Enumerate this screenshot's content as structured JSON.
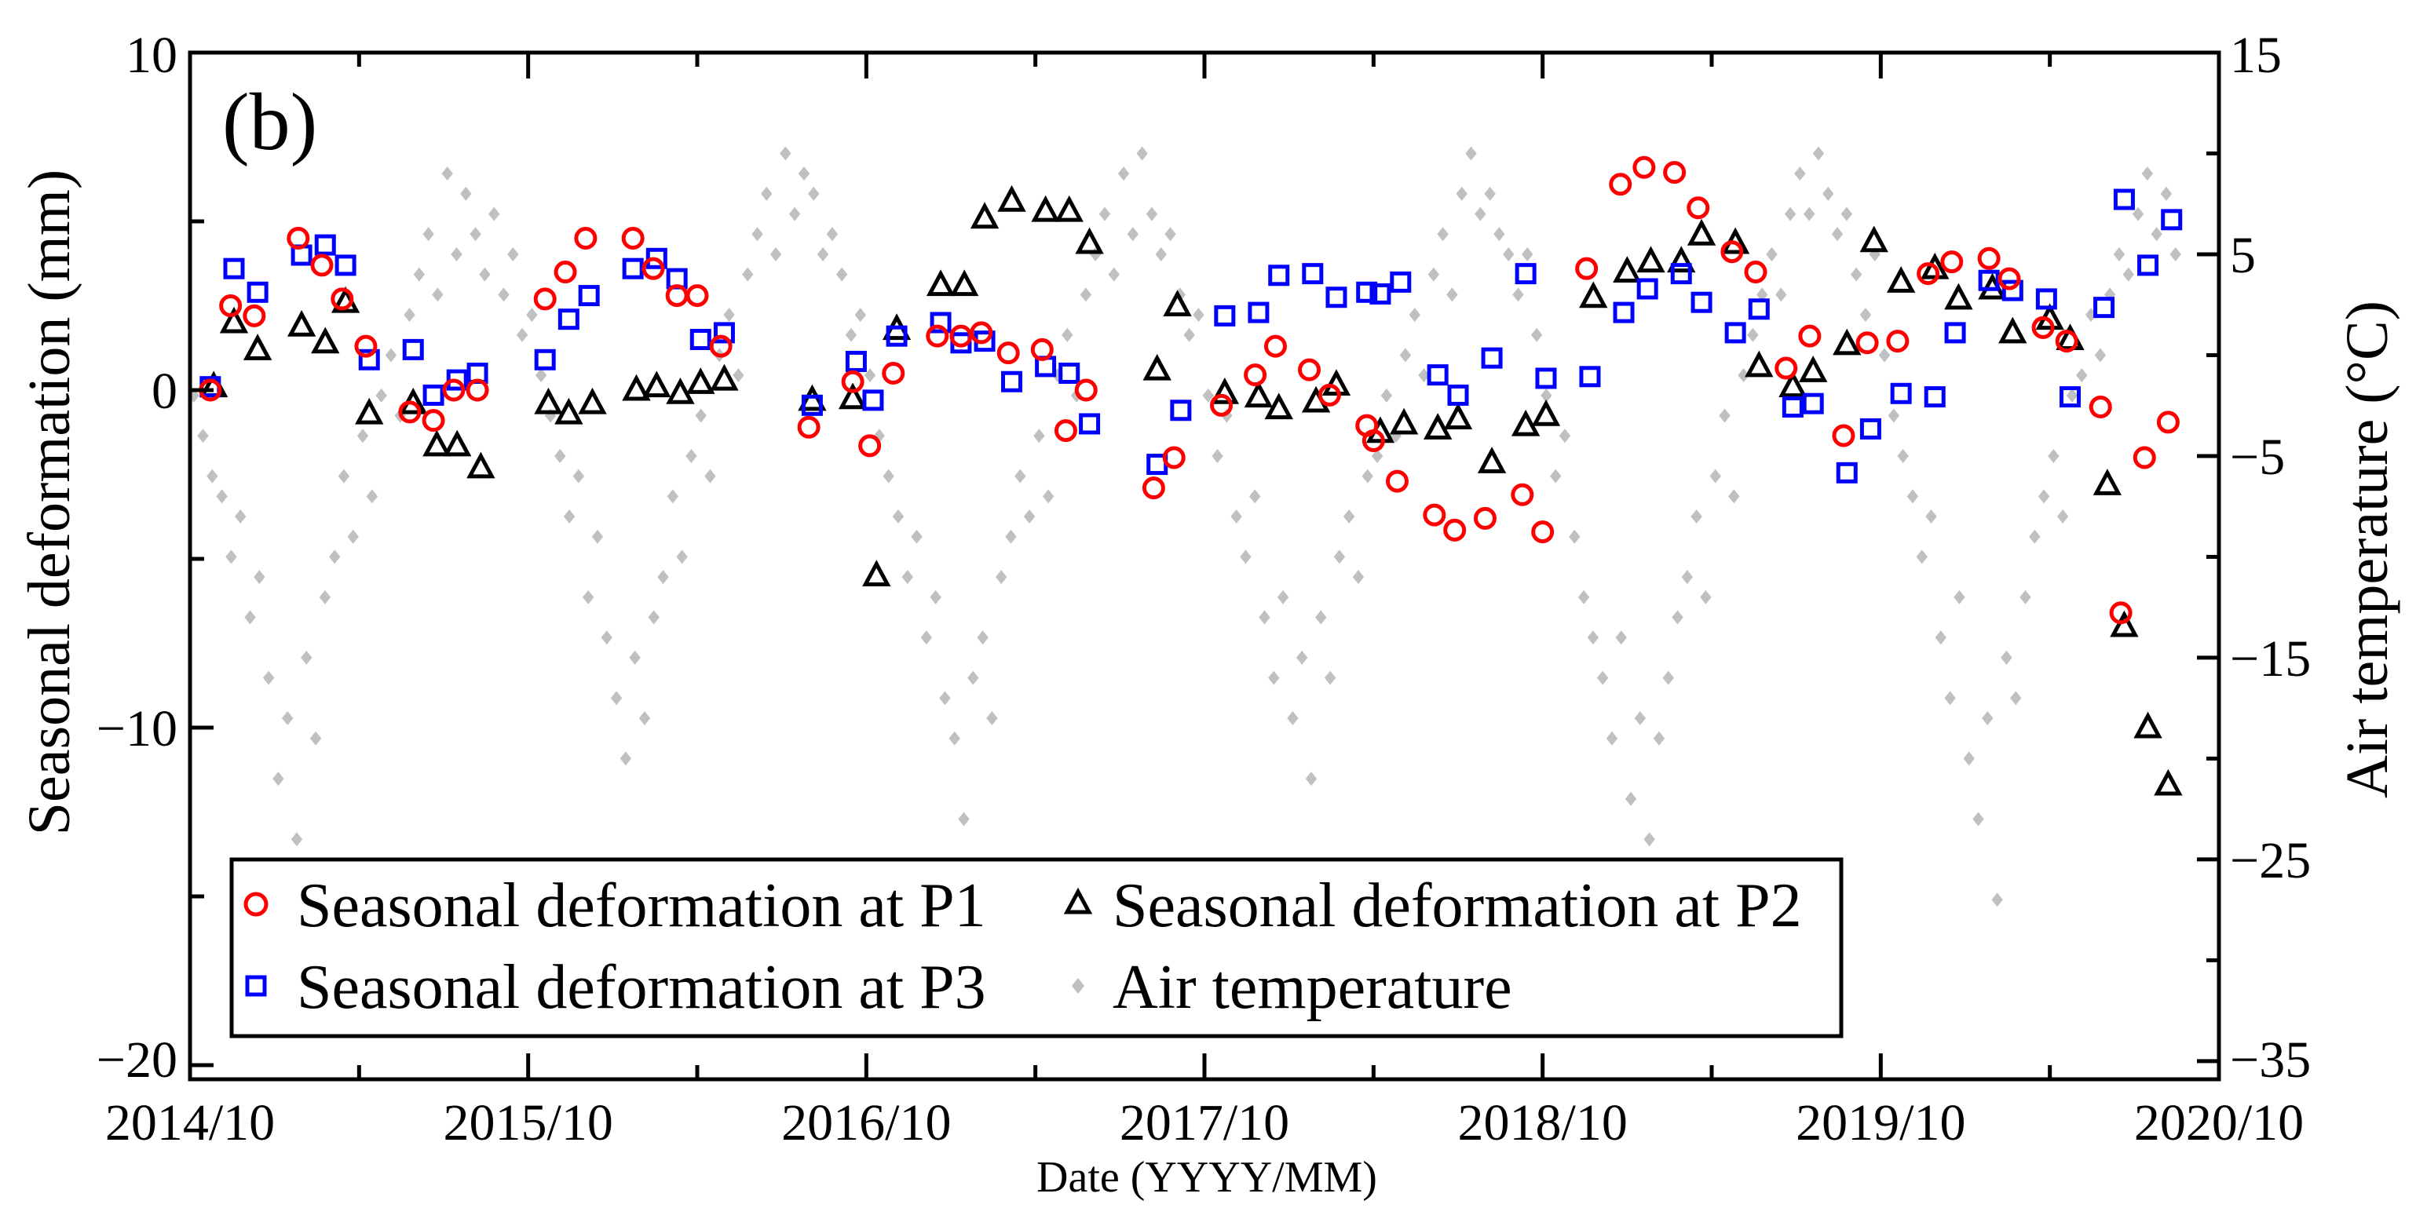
{
  "chart_data": {
    "type": "scatter",
    "panel_label": "(b)",
    "xlabel": "Date (YYYY/MM)",
    "ylabel": "Seasonal deformation (mm)",
    "y2label": "Air temperature (°C)",
    "xlim": [
      2014.75,
      2020.75
    ],
    "xticks": {
      "values": [
        2014.75,
        2015.75,
        2016.75,
        2017.75,
        2018.75,
        2019.75,
        2020.75
      ],
      "labels": [
        "2014/10",
        "2015/10",
        "2016/10",
        "2017/10",
        "2018/10",
        "2019/10",
        "2020/10"
      ]
    },
    "ylim": [
      -20.42,
      10
    ],
    "yticks": {
      "values": [
        10,
        0,
        -10,
        -20
      ],
      "labels": [
        "10",
        "0",
        "−10",
        "−20"
      ]
    },
    "y2lim": [
      -35.9,
      15
    ],
    "y2ticks": {
      "values": [
        15,
        5,
        -5,
        -15,
        -25,
        -35
      ],
      "labels": [
        "15",
        "5",
        "−5",
        "−15",
        "−25",
        "−35"
      ]
    },
    "grid": false,
    "legend_position": "bottom-left",
    "series": [
      {
        "name": "Seasonal deformation at P1",
        "color": "#ff0000",
        "marker": "circle",
        "axis": "left",
        "points": [
          [
            2014.81,
            0.0
          ],
          [
            2014.87,
            2.5
          ],
          [
            2014.94,
            2.2
          ],
          [
            2015.07,
            4.5
          ],
          [
            2015.14,
            3.7
          ],
          [
            2015.2,
            2.7
          ],
          [
            2015.27,
            1.3
          ],
          [
            2015.4,
            -0.65
          ],
          [
            2015.47,
            -0.9
          ],
          [
            2015.53,
            0.0
          ],
          [
            2015.6,
            0.0
          ],
          [
            2015.8,
            2.7
          ],
          [
            2015.86,
            3.5
          ],
          [
            2015.92,
            4.5
          ],
          [
            2016.06,
            4.5
          ],
          [
            2016.12,
            3.6
          ],
          [
            2016.19,
            2.8
          ],
          [
            2016.25,
            2.8
          ],
          [
            2016.32,
            1.3
          ],
          [
            2016.58,
            -1.1
          ],
          [
            2016.71,
            0.25
          ],
          [
            2016.76,
            -1.65
          ],
          [
            2016.83,
            0.5
          ],
          [
            2016.96,
            1.6
          ],
          [
            2017.03,
            1.6
          ],
          [
            2017.09,
            1.7
          ],
          [
            2017.17,
            1.1
          ],
          [
            2017.27,
            1.2
          ],
          [
            2017.34,
            -1.2
          ],
          [
            2017.4,
            0.0
          ],
          [
            2017.6,
            -2.9
          ],
          [
            2017.66,
            -2.0
          ],
          [
            2017.8,
            -0.45
          ],
          [
            2017.9,
            0.45
          ],
          [
            2017.96,
            1.3
          ],
          [
            2018.06,
            0.6
          ],
          [
            2018.12,
            -0.15
          ],
          [
            2018.23,
            -1.05
          ],
          [
            2018.25,
            -1.5
          ],
          [
            2018.32,
            -2.7
          ],
          [
            2018.43,
            -3.7
          ],
          [
            2018.49,
            -4.15
          ],
          [
            2018.58,
            -3.8
          ],
          [
            2018.69,
            -3.1
          ],
          [
            2018.75,
            -4.2
          ],
          [
            2018.88,
            3.6
          ],
          [
            2018.98,
            6.1
          ],
          [
            2019.05,
            6.6
          ],
          [
            2019.14,
            6.45
          ],
          [
            2019.21,
            5.4
          ],
          [
            2019.31,
            4.1
          ],
          [
            2019.38,
            3.5
          ],
          [
            2019.47,
            0.65
          ],
          [
            2019.54,
            1.6
          ],
          [
            2019.64,
            -1.35
          ],
          [
            2019.71,
            1.4
          ],
          [
            2019.8,
            1.45
          ],
          [
            2019.89,
            3.45
          ],
          [
            2019.96,
            3.8
          ],
          [
            2020.07,
            3.9
          ],
          [
            2020.13,
            3.3
          ],
          [
            2020.23,
            1.85
          ],
          [
            2020.3,
            1.45
          ],
          [
            2020.4,
            -0.5
          ],
          [
            2020.46,
            -6.6
          ],
          [
            2020.53,
            -2.0
          ],
          [
            2020.6,
            -0.95
          ]
        ]
      },
      {
        "name": "Seasonal deformation at P2",
        "color": "#000000",
        "marker": "triangle",
        "axis": "left",
        "points": [
          [
            2014.82,
            0.1
          ],
          [
            2014.88,
            2.0
          ],
          [
            2014.95,
            1.2
          ],
          [
            2015.08,
            1.9
          ],
          [
            2015.15,
            1.4
          ],
          [
            2015.21,
            2.6
          ],
          [
            2015.28,
            -0.7
          ],
          [
            2015.41,
            -0.4
          ],
          [
            2015.48,
            -1.65
          ],
          [
            2015.54,
            -1.65
          ],
          [
            2015.61,
            -2.3
          ],
          [
            2015.81,
            -0.4
          ],
          [
            2015.87,
            -0.7
          ],
          [
            2015.94,
            -0.4
          ],
          [
            2016.07,
            0.0
          ],
          [
            2016.13,
            0.1
          ],
          [
            2016.2,
            -0.1
          ],
          [
            2016.26,
            0.2
          ],
          [
            2016.33,
            0.3
          ],
          [
            2016.59,
            -0.3
          ],
          [
            2016.71,
            -0.25
          ],
          [
            2016.78,
            -5.5
          ],
          [
            2016.84,
            1.8
          ],
          [
            2016.97,
            3.1
          ],
          [
            2017.04,
            3.1
          ],
          [
            2017.1,
            5.1
          ],
          [
            2017.18,
            5.6
          ],
          [
            2017.28,
            5.3
          ],
          [
            2017.35,
            5.3
          ],
          [
            2017.41,
            4.35
          ],
          [
            2017.61,
            0.6
          ],
          [
            2017.67,
            2.5
          ],
          [
            2017.81,
            -0.1
          ],
          [
            2017.91,
            -0.2
          ],
          [
            2017.97,
            -0.55
          ],
          [
            2018.08,
            -0.35
          ],
          [
            2018.14,
            0.15
          ],
          [
            2018.27,
            -1.25
          ],
          [
            2018.34,
            -1.0
          ],
          [
            2018.44,
            -1.15
          ],
          [
            2018.5,
            -0.85
          ],
          [
            2018.6,
            -2.15
          ],
          [
            2018.7,
            -1.05
          ],
          [
            2018.76,
            -0.75
          ],
          [
            2018.9,
            2.75
          ],
          [
            2019.0,
            3.5
          ],
          [
            2019.07,
            3.8
          ],
          [
            2019.16,
            3.8
          ],
          [
            2019.22,
            4.6
          ],
          [
            2019.32,
            4.35
          ],
          [
            2019.39,
            0.7
          ],
          [
            2019.49,
            0.1
          ],
          [
            2019.55,
            0.55
          ],
          [
            2019.65,
            1.35
          ],
          [
            2019.73,
            4.4
          ],
          [
            2019.81,
            3.2
          ],
          [
            2019.91,
            3.6
          ],
          [
            2019.98,
            2.7
          ],
          [
            2020.08,
            3.0
          ],
          [
            2020.14,
            1.7
          ],
          [
            2020.25,
            2.1
          ],
          [
            2020.31,
            1.5
          ],
          [
            2020.42,
            -2.8
          ],
          [
            2020.47,
            -7.0
          ],
          [
            2020.54,
            -10.0
          ],
          [
            2020.6,
            -11.7
          ]
        ]
      },
      {
        "name": "Seasonal deformation at P3",
        "color": "#0000ff",
        "marker": "square",
        "axis": "left",
        "points": [
          [
            2014.81,
            0.1
          ],
          [
            2014.88,
            3.6
          ],
          [
            2014.95,
            2.9
          ],
          [
            2015.08,
            4.0
          ],
          [
            2015.15,
            4.3
          ],
          [
            2015.21,
            3.7
          ],
          [
            2015.28,
            0.9
          ],
          [
            2015.41,
            1.2
          ],
          [
            2015.47,
            -0.15
          ],
          [
            2015.54,
            0.3
          ],
          [
            2015.6,
            0.5
          ],
          [
            2015.8,
            0.9
          ],
          [
            2015.87,
            2.1
          ],
          [
            2015.93,
            2.8
          ],
          [
            2016.06,
            3.6
          ],
          [
            2016.13,
            3.9
          ],
          [
            2016.19,
            3.3
          ],
          [
            2016.26,
            1.5
          ],
          [
            2016.33,
            1.7
          ],
          [
            2016.59,
            -0.45
          ],
          [
            2016.72,
            0.85
          ],
          [
            2016.77,
            -0.3
          ],
          [
            2016.84,
            1.6
          ],
          [
            2016.97,
            2.0
          ],
          [
            2017.03,
            1.4
          ],
          [
            2017.1,
            1.45
          ],
          [
            2017.18,
            0.25
          ],
          [
            2017.28,
            0.7
          ],
          [
            2017.35,
            0.5
          ],
          [
            2017.41,
            -1.0
          ],
          [
            2017.61,
            -2.2
          ],
          [
            2017.68,
            -0.6
          ],
          [
            2017.81,
            2.2
          ],
          [
            2017.91,
            2.3
          ],
          [
            2017.97,
            3.4
          ],
          [
            2018.07,
            3.45
          ],
          [
            2018.14,
            2.75
          ],
          [
            2018.23,
            2.9
          ],
          [
            2018.27,
            2.85
          ],
          [
            2018.33,
            3.2
          ],
          [
            2018.44,
            0.45
          ],
          [
            2018.5,
            -0.15
          ],
          [
            2018.6,
            0.95
          ],
          [
            2018.7,
            3.45
          ],
          [
            2018.76,
            0.35
          ],
          [
            2018.89,
            0.4
          ],
          [
            2018.99,
            2.3
          ],
          [
            2019.06,
            3.0
          ],
          [
            2019.16,
            3.45
          ],
          [
            2019.22,
            2.6
          ],
          [
            2019.32,
            1.7
          ],
          [
            2019.39,
            2.4
          ],
          [
            2019.49,
            -0.5
          ],
          [
            2019.55,
            -0.4
          ],
          [
            2019.65,
            -2.45
          ],
          [
            2019.72,
            -1.15
          ],
          [
            2019.81,
            -0.1
          ],
          [
            2019.91,
            -0.2
          ],
          [
            2019.97,
            1.7
          ],
          [
            2020.07,
            3.25
          ],
          [
            2020.14,
            2.95
          ],
          [
            2020.24,
            2.7
          ],
          [
            2020.31,
            -0.2
          ],
          [
            2020.41,
            2.45
          ],
          [
            2020.47,
            5.65
          ],
          [
            2020.54,
            3.7
          ],
          [
            2020.61,
            5.05
          ]
        ]
      }
    ],
    "air_temperature": {
      "name": "Air temperature",
      "color": "#c0c0c0",
      "marker": "diamond",
      "axis": "right",
      "start_month": "2014-10",
      "sample_days": [
        5,
        15,
        25
      ],
      "monthly_values": [
        [
          -2,
          -4,
          -6
        ],
        [
          -7,
          -10,
          -8
        ],
        [
          -13,
          -11,
          -16
        ],
        [
          -21,
          -18,
          -24
        ],
        [
          -15,
          -19,
          -12
        ],
        [
          -10,
          -6,
          -9
        ],
        [
          -4,
          -7,
          -2
        ],
        [
          0,
          -3,
          2
        ],
        [
          4,
          6,
          3
        ],
        [
          9,
          5,
          8
        ],
        [
          6,
          4,
          7
        ],
        [
          3,
          5,
          1
        ],
        [
          2,
          -1,
          -3
        ],
        [
          -5,
          -8,
          -6
        ],
        [
          -12,
          -9,
          -14
        ],
        [
          -17,
          -20,
          -15
        ],
        [
          -18,
          -13,
          -11
        ],
        [
          -7,
          -10,
          -5
        ],
        [
          -3,
          -6,
          0
        ],
        [
          2,
          -1,
          4
        ],
        [
          6,
          8,
          5
        ],
        [
          10,
          7,
          9
        ],
        [
          8,
          5,
          6
        ],
        [
          4,
          1,
          2
        ],
        [
          -1,
          -4,
          -6
        ],
        [
          -8,
          -11,
          -9
        ],
        [
          -14,
          -12,
          -17
        ],
        [
          -19,
          -23,
          -16
        ],
        [
          -14,
          -18,
          -11
        ],
        [
          -9,
          -6,
          -8
        ],
        [
          -4,
          -7,
          -1
        ],
        [
          1,
          -2,
          3
        ],
        [
          5,
          7,
          4
        ],
        [
          9,
          6,
          10
        ],
        [
          7,
          5,
          6
        ],
        [
          3,
          1,
          2
        ],
        [
          -2,
          -5,
          -3
        ],
        [
          -8,
          -10,
          -7
        ],
        [
          -13,
          -16,
          -12
        ],
        [
          -18,
          -15,
          -21
        ],
        [
          -13,
          -16,
          -10
        ],
        [
          -8,
          -11,
          -6
        ],
        [
          -5,
          -2,
          -4
        ],
        [
          0,
          2,
          -1
        ],
        [
          4,
          6,
          3
        ],
        [
          8,
          10,
          7
        ],
        [
          8,
          6,
          5
        ],
        [
          3,
          5,
          1
        ],
        [
          -2,
          -6,
          -4
        ],
        [
          -9,
          -12,
          -14
        ],
        [
          -16,
          -19,
          -14
        ],
        [
          -22,
          -18,
          -24
        ],
        [
          -19,
          -16,
          -13
        ],
        [
          -11,
          -8,
          -12
        ],
        [
          -6,
          -3,
          -7
        ],
        [
          -1,
          1,
          3
        ],
        [
          5,
          3,
          7
        ],
        [
          9,
          7,
          10
        ],
        [
          8,
          6,
          7
        ],
        [
          4,
          2,
          5
        ],
        [
          0,
          -3,
          -5
        ],
        [
          -7,
          -10,
          -8
        ],
        [
          -14,
          -17,
          -12
        ],
        [
          -20,
          -23,
          -18
        ],
        [
          -27,
          -15,
          -17
        ],
        [
          -12,
          -9,
          -7
        ],
        [
          -5,
          -8,
          -2
        ],
        [
          -1,
          2,
          0
        ],
        [
          3,
          5,
          4
        ],
        [
          7,
          9,
          6
        ],
        [
          8,
          5
        ]
      ]
    }
  }
}
